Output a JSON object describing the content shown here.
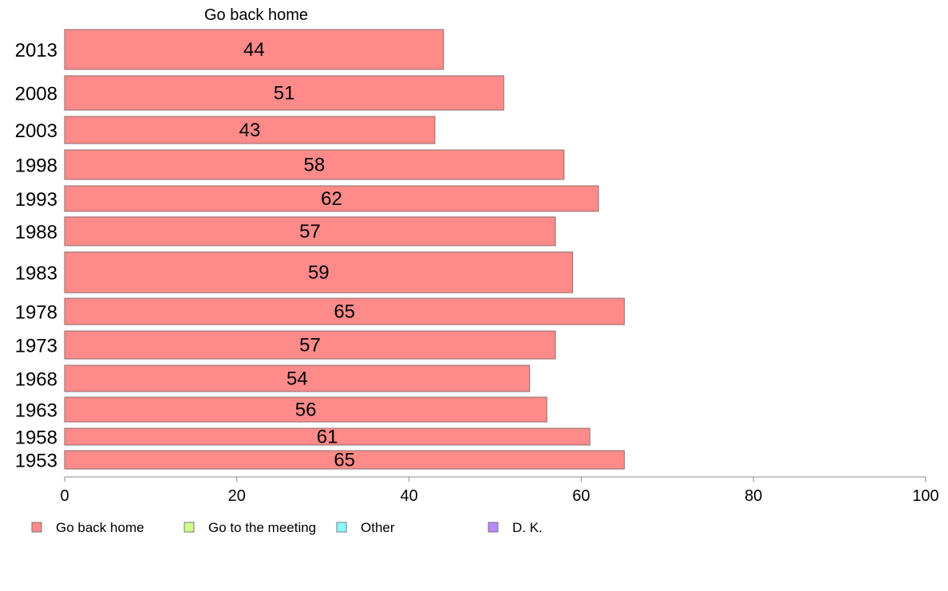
{
  "chart_data": {
    "type": "bar",
    "orientation": "horizontal",
    "title": "Go back home",
    "categories": [
      "2013",
      "2008",
      "2003",
      "1998",
      "1993",
      "1988",
      "1983",
      "1978",
      "1973",
      "1968",
      "1963",
      "1958",
      "1953"
    ],
    "series": [
      {
        "name": "Go back home",
        "color": "#ff8a8a",
        "values": [
          44,
          51,
          43,
          58,
          62,
          57,
          59,
          65,
          57,
          54,
          56,
          61,
          65
        ]
      }
    ],
    "bar_value_labels": [
      "44",
      "51",
      "43",
      "58",
      "62",
      "57",
      "59",
      "65",
      "57",
      "54",
      "56",
      "61",
      "65"
    ],
    "x_ticks": [
      0,
      20,
      40,
      60,
      80,
      100
    ],
    "x_tick_labels": [
      "0",
      "20",
      "40",
      "60",
      "80",
      "100"
    ],
    "xlim": [
      0,
      100
    ],
    "grid": false,
    "legend_position": "bottom-left",
    "legend": [
      {
        "label": "Go back home",
        "color": "#ff8a8a"
      },
      {
        "label": "Go to the meeting",
        "color": "#ccff88"
      },
      {
        "label": "Other",
        "color": "#88ffff"
      },
      {
        "label": "D. K.",
        "color": "#bb88ff"
      }
    ]
  }
}
